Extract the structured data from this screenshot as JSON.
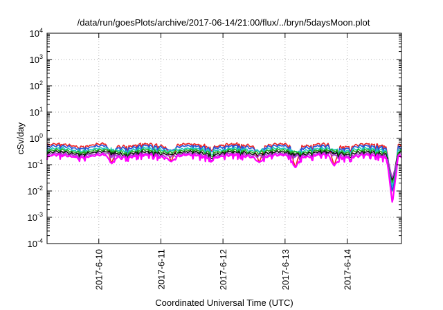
{
  "chart_data": {
    "type": "line",
    "title": "/data/run/goesPlots/archive/2017-06-14/21:00/flux/../bryn/5daysMoon.plot",
    "xlabel": "Coordinated Universal Time (UTC)",
    "ylabel": "cSv/day",
    "yscale": "log",
    "grid": true,
    "legend": "none",
    "xlim": [
      "2017-06-09T04:00",
      "2017-06-14T21:00"
    ],
    "ylim": [
      0.0001,
      10000
    ],
    "x_tick_labels": [
      "2017-6-10",
      "2017-6-11",
      "2017-6-12",
      "2017-6-13",
      "2017-6-14"
    ],
    "x_ticks": [
      "2017-06-10T00:00",
      "2017-06-11T00:00",
      "2017-06-12T00:00",
      "2017-06-13T00:00",
      "2017-06-14T00:00"
    ],
    "y_ticks": [
      {
        "base": "10",
        "exp": "4",
        "value": 10000
      },
      {
        "base": "10",
        "exp": "3",
        "value": 1000
      },
      {
        "base": "10",
        "exp": "2",
        "value": 100
      },
      {
        "base": "10",
        "exp": "1",
        "value": 10
      },
      {
        "base": "10",
        "exp": "0",
        "value": 1
      },
      {
        "base": "10",
        "exp": "-1",
        "value": 0.1
      },
      {
        "base": "10",
        "exp": "-2",
        "value": 0.01
      },
      {
        "base": "10",
        "exp": "-3",
        "value": 0.001
      },
      {
        "base": "10",
        "exp": "-4",
        "value": 0.0001
      }
    ],
    "series": [
      {
        "color": "#ee2222",
        "base": 0.55
      },
      {
        "color": "#2255dd",
        "base": 0.47
      },
      {
        "color": "#22ccbb",
        "base": 0.38
      },
      {
        "color": "#22aa22",
        "base": 0.33
      },
      {
        "color": "#111111",
        "base": 0.28
      },
      {
        "color": "#aa33cc",
        "base": 0.24
      },
      {
        "color": "#ff00ff",
        "base": 0.21
      }
    ],
    "dips": [
      {
        "x": "2017-06-14T17:30",
        "min": 0.0033
      },
      {
        "x": "2017-06-13T04:00",
        "min": 0.075
      },
      {
        "x": "2017-06-13T19:00",
        "min": 0.09
      },
      {
        "x": "2017-06-10T05:00",
        "min": 0.11
      },
      {
        "x": "2017-06-12T14:00",
        "min": 0.12
      },
      {
        "x": "2017-06-11T04:00",
        "min": 0.13
      }
    ]
  }
}
